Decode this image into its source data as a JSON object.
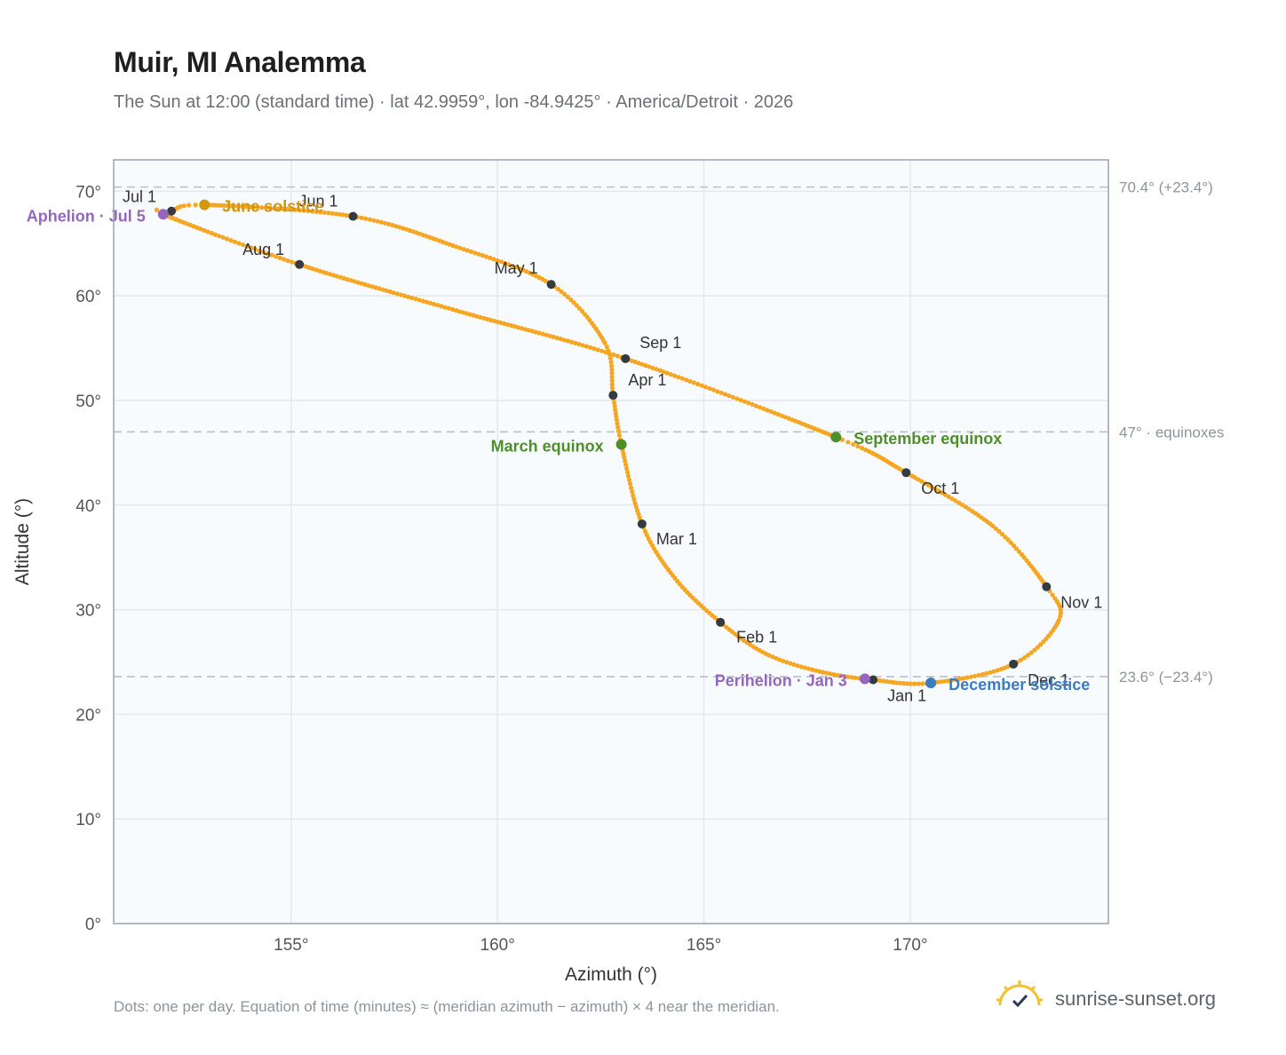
{
  "header": {
    "title": "Muir, MI Analemma",
    "subtitle": "The Sun at 12:00 (standard time) · lat 42.9959°, lon -84.9425° · America/Detroit · 2026"
  },
  "footer": {
    "note": "Dots: one per day. Equation of time (minutes) ≈ (meridian azimuth − azimuth) × 4 near the meridian.",
    "brand": "sunrise-sunset.org"
  },
  "colors": {
    "curve": "#f5a623",
    "month_marker": "#333a40",
    "solstice_june": "#d4960f",
    "solstice_december": "#3b7cc4",
    "equinox": "#4e8f2b",
    "apsis": "#9467bd",
    "reference_line": "#b8c0ca",
    "plot_bg": "#f8fbfe",
    "grid": "#e3e8ee",
    "frame": "#9aa4b2"
  },
  "chart_data": {
    "type": "scatter",
    "xlabel": "Azimuth (°)",
    "ylabel": "Altitude (°)",
    "xlim": [
      150.7,
      174.8
    ],
    "ylim": [
      0,
      73
    ],
    "x_ticks": [
      155,
      160,
      165,
      170
    ],
    "x_tick_labels": [
      "155°",
      "160°",
      "165°",
      "170°"
    ],
    "y_ticks": [
      0,
      10,
      20,
      30,
      40,
      50,
      60,
      70
    ],
    "y_tick_labels": [
      "0°",
      "10°",
      "20°",
      "30°",
      "40°",
      "50°",
      "60°",
      "70°"
    ],
    "grid": true,
    "reference_lines": [
      {
        "y": 70.4,
        "label": "70.4° (+23.4°)"
      },
      {
        "y": 47.0,
        "label": "47° · equinoxes"
      },
      {
        "y": 23.6,
        "label": "23.6° (−23.4°)"
      }
    ],
    "month_markers": [
      {
        "label": "Jan 1",
        "az": 169.1,
        "alt": 23.3
      },
      {
        "label": "Feb 1",
        "az": 165.4,
        "alt": 28.8
      },
      {
        "label": "Mar 1",
        "az": 163.5,
        "alt": 38.2
      },
      {
        "label": "Apr 1",
        "az": 162.8,
        "alt": 50.5
      },
      {
        "label": "May 1",
        "az": 161.3,
        "alt": 61.1
      },
      {
        "label": "Jun 1",
        "az": 156.5,
        "alt": 67.6
      },
      {
        "label": "Jul 1",
        "az": 152.1,
        "alt": 68.1
      },
      {
        "label": "Aug 1",
        "az": 155.2,
        "alt": 63.0
      },
      {
        "label": "Sep 1",
        "az": 163.1,
        "alt": 54.0
      },
      {
        "label": "Oct 1",
        "az": 169.9,
        "alt": 43.1
      },
      {
        "label": "Nov 1",
        "az": 173.3,
        "alt": 32.2
      },
      {
        "label": "Dec 1",
        "az": 172.5,
        "alt": 24.8
      }
    ],
    "events": [
      {
        "label": "Aphelion · Jul 5",
        "az": 151.9,
        "alt": 67.8,
        "kind": "apsis"
      },
      {
        "label": "June solstice",
        "az": 152.9,
        "alt": 68.7,
        "kind": "solstice_june"
      },
      {
        "label": "March equinox",
        "az": 163.0,
        "alt": 45.8,
        "kind": "equinox"
      },
      {
        "label": "September equinox",
        "az": 168.2,
        "alt": 46.5,
        "kind": "equinox"
      },
      {
        "label": "Perihelion · Jan 3",
        "az": 168.9,
        "alt": 23.4,
        "kind": "apsis"
      },
      {
        "label": "December solstice",
        "az": 170.5,
        "alt": 23.0,
        "kind": "solstice_december"
      }
    ],
    "path_keypoints": [
      {
        "az": 169.1,
        "alt": 23.3
      },
      {
        "az": 167.8,
        "alt": 24.1
      },
      {
        "az": 166.5,
        "alt": 25.8
      },
      {
        "az": 165.4,
        "alt": 28.8
      },
      {
        "az": 164.3,
        "alt": 33.0
      },
      {
        "az": 163.5,
        "alt": 38.2
      },
      {
        "az": 163.0,
        "alt": 45.8
      },
      {
        "az": 162.8,
        "alt": 50.5
      },
      {
        "az": 162.6,
        "alt": 55.5
      },
      {
        "az": 161.3,
        "alt": 61.1
      },
      {
        "az": 159.0,
        "alt": 64.7
      },
      {
        "az": 156.5,
        "alt": 67.6
      },
      {
        "az": 152.9,
        "alt": 68.7
      },
      {
        "az": 152.1,
        "alt": 68.1
      },
      {
        "az": 151.9,
        "alt": 67.8
      },
      {
        "az": 155.2,
        "alt": 63.0
      },
      {
        "az": 159.0,
        "alt": 58.6
      },
      {
        "az": 163.1,
        "alt": 54.0
      },
      {
        "az": 168.2,
        "alt": 46.5
      },
      {
        "az": 169.9,
        "alt": 43.1
      },
      {
        "az": 172.0,
        "alt": 38.0
      },
      {
        "az": 173.3,
        "alt": 32.2
      },
      {
        "az": 173.6,
        "alt": 29.0
      },
      {
        "az": 172.5,
        "alt": 24.8
      },
      {
        "az": 170.5,
        "alt": 23.0
      },
      {
        "az": 169.1,
        "alt": 23.3
      }
    ]
  }
}
